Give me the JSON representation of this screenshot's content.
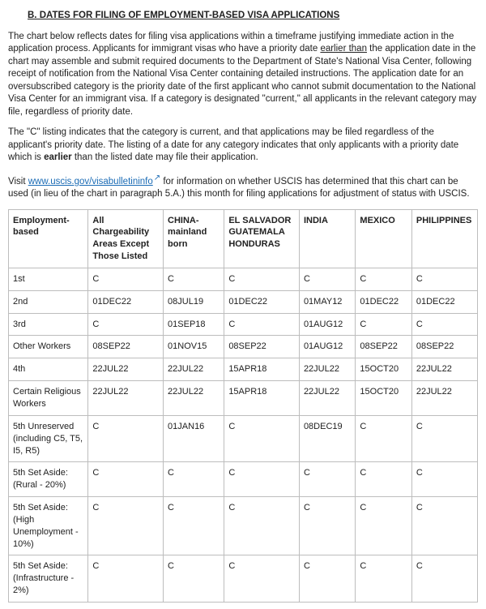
{
  "heading": "B.  DATES FOR FILING OF EMPLOYMENT-BASED VISA APPLICATIONS",
  "para1_a": "The chart below reflects dates for filing visa applications within a timeframe justifying immediate action in the application process. Applicants for immigrant visas who have a priority date ",
  "para1_earlier": "earlier than",
  "para1_b": " the application date in the chart may assemble and submit required documents to the Department of State's National Visa Center, following receipt of notification from the National Visa Center containing detailed instructions. The application date for an oversubscribed category is the priority date of the first applicant who cannot submit documentation to the National Visa Center for an immigrant visa. If a category is designated \"current,\" all applicants in the relevant category may file, regardless of priority date.",
  "para2_a": "The \"C\" listing indicates that the category is current, and that applications may be filed regardless of the applicant's priority date. The listing of a date for any category indicates that only applicants with a priority date which is ",
  "para2_bold": "earlier",
  "para2_b": " than the listed date may file their application.",
  "para3_a": "Visit ",
  "para3_link": "www.uscis.gov/visabulletininfo",
  "para3_b": " for information on whether USCIS has determined that this chart can be used (in lieu of the chart in paragraph 5.A.) this month for filing applications for adjustment of status with USCIS.",
  "link_href": "https://www.uscis.gov/visabulletininfo",
  "table": {
    "columns": [
      "Employment-based",
      "All Chargeability Areas Except Those Listed",
      "CHINA-mainland born",
      "EL SALVADOR GUATEMALA HONDURAS",
      "INDIA",
      "MEXICO",
      "PHILIPPINES"
    ],
    "rows": [
      [
        "1st",
        "C",
        "C",
        "C",
        "C",
        "C",
        "C"
      ],
      [
        "2nd",
        "01DEC22",
        "08JUL19",
        "01DEC22",
        "01MAY12",
        "01DEC22",
        "01DEC22"
      ],
      [
        "3rd",
        "C",
        "01SEP18",
        "C",
        "01AUG12",
        "C",
        "C"
      ],
      [
        "Other Workers",
        "08SEP22",
        "01NOV15",
        "08SEP22",
        "01AUG12",
        "08SEP22",
        "08SEP22"
      ],
      [
        "4th",
        "22JUL22",
        "22JUL22",
        "15APR18",
        "22JUL22",
        "15OCT20",
        "22JUL22"
      ],
      [
        "Certain Religious Workers",
        "22JUL22",
        "22JUL22",
        "15APR18",
        "22JUL22",
        "15OCT20",
        "22JUL22"
      ],
      [
        "5th Unreserved (including C5, T5, I5, R5)",
        "C",
        "01JAN16",
        "C",
        "08DEC19",
        "C",
        "C"
      ],
      [
        "5th Set Aside: (Rural - 20%)",
        "C",
        "C",
        "C",
        "C",
        "C",
        "C"
      ],
      [
        "5th Set Aside: (High Unemployment - 10%)",
        "C",
        "C",
        "C",
        "C",
        "C",
        "C"
      ],
      [
        "5th Set Aside: (Infrastructure - 2%)",
        "C",
        "C",
        "C",
        "C",
        "C",
        "C"
      ]
    ]
  }
}
